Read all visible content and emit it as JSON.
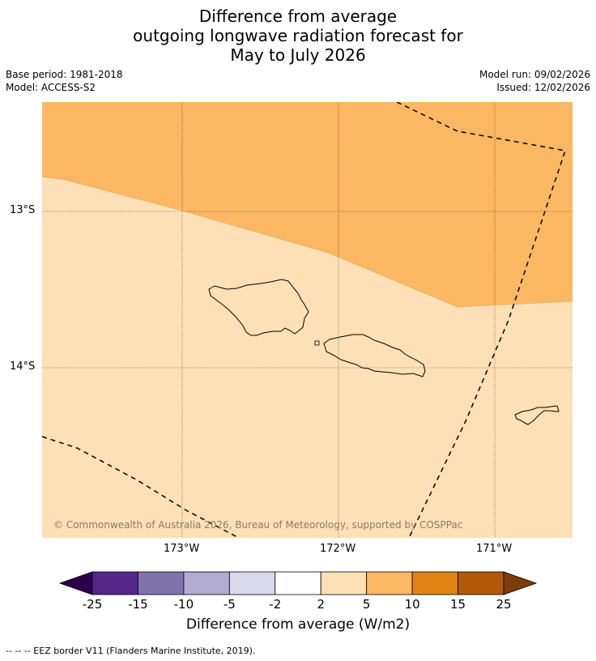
{
  "title": {
    "line1": "Difference from average",
    "line2": "outgoing longwave radiation forecast for",
    "line3": "May to July 2026"
  },
  "meta": {
    "base_period": "Base period: 1981-2018",
    "model": "Model: ACCESS-S2",
    "model_run": "Model run: 09/02/2026",
    "issued": "Issued: 12/02/2026"
  },
  "map": {
    "lat_labels": [
      "13°S",
      "14°S"
    ],
    "lon_labels": [
      "173°W",
      "172°W",
      "171°W"
    ],
    "copyright": "© Commonwealth of Australia 2026, Bureau of Meteorology, supported by COSPPac",
    "colors": {
      "band_2_5": "#fde0b5",
      "band_5_10": "#fbb762",
      "grid": "#000000",
      "coast": "#000000",
      "eez": "#000000"
    }
  },
  "colorbar": {
    "ticks": [
      "-25",
      "-15",
      "-10",
      "-5",
      "-2",
      "2",
      "5",
      "10",
      "15",
      "25"
    ],
    "colors": [
      "#2d004b",
      "#542788",
      "#8073ac",
      "#b2abd2",
      "#d8daeb",
      "#ffffff",
      "#fee0b6",
      "#fdb863",
      "#e08214",
      "#b35806",
      "#7f3b08"
    ],
    "title": "Difference from average (W/m2)"
  },
  "footnote": "--  --  -- EEZ border V11 (Flanders Marine Institute, 2019)."
}
